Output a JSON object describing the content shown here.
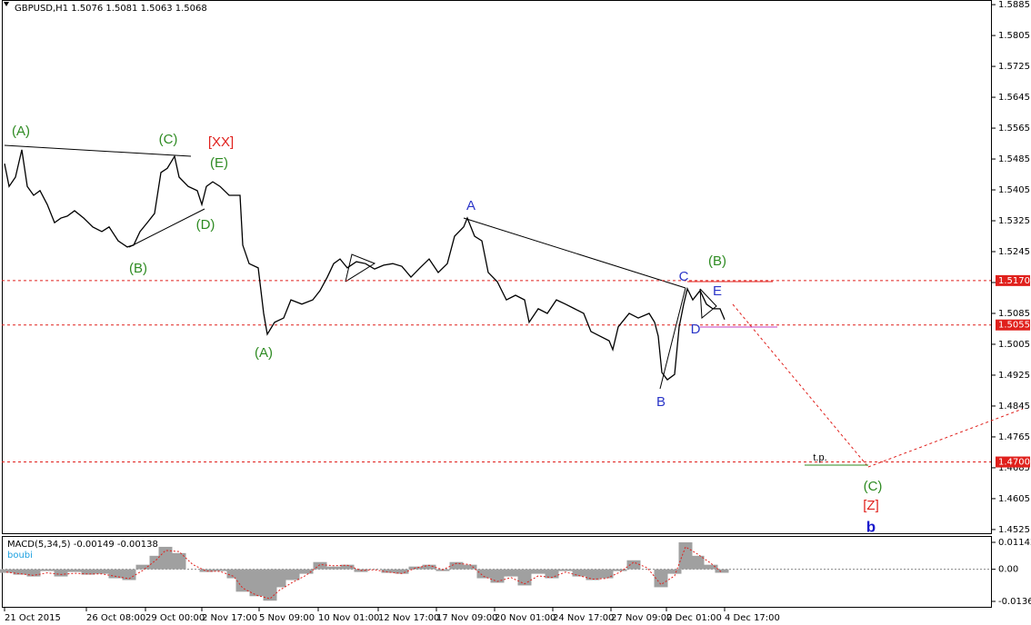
{
  "chart_data": [
    {
      "type": "line",
      "title": "GBPUSD,H1  1.5076 1.5081 1.5063 1.5068",
      "color": "#000000",
      "x": [
        1.5,
        4,
        7.5,
        11,
        14,
        17.5,
        21,
        25,
        29,
        32.5,
        36,
        40,
        45,
        50,
        55,
        59,
        64,
        69,
        72.5,
        76,
        80,
        84,
        87.5,
        91,
        95,
        97.5,
        102.5,
        107.5,
        110,
        112.5,
        116,
        120,
        125,
        131,
        132.5,
        136,
        141,
        144,
        146,
        150,
        155,
        159,
        165,
        171,
        175,
        179,
        182.5,
        186,
        190,
        195,
        200,
        205,
        210,
        215,
        220,
        225,
        230,
        235,
        240,
        245,
        249,
        254,
        256,
        260,
        264,
        267.5,
        272.5,
        277.5,
        282.5,
        287.5,
        290,
        295,
        300,
        305,
        310,
        315,
        320,
        324,
        329,
        334,
        336,
        339,
        345,
        350,
        356,
        359,
        361,
        363,
        366,
        370,
        372.5,
        375,
        377,
        380,
        384,
        387.5,
        391,
        395,
        397.5
      ],
      "values": [
        1.5473,
        1.5414,
        1.5438,
        1.5509,
        1.5414,
        1.5391,
        1.5403,
        1.5367,
        1.532,
        1.5332,
        1.5337,
        1.5351,
        1.5332,
        1.5309,
        1.5297,
        1.5309,
        1.5273,
        1.5257,
        1.5262,
        1.5297,
        1.532,
        1.5344,
        1.545,
        1.5461,
        1.5492,
        1.5438,
        1.5414,
        1.5403,
        1.5367,
        1.5414,
        1.5426,
        1.5414,
        1.5391,
        1.5391,
        1.5262,
        1.5214,
        1.5203,
        1.5085,
        1.5031,
        1.5062,
        1.5073,
        1.512,
        1.5109,
        1.512,
        1.5144,
        1.5179,
        1.5214,
        1.5226,
        1.5203,
        1.5219,
        1.5214,
        1.52,
        1.521,
        1.5214,
        1.5207,
        1.5179,
        1.5203,
        1.5226,
        1.5191,
        1.5214,
        1.5285,
        1.5309,
        1.5332,
        1.5285,
        1.5273,
        1.5191,
        1.5167,
        1.512,
        1.5132,
        1.512,
        1.5062,
        1.5097,
        1.5085,
        1.512,
        1.5109,
        1.5097,
        1.5085,
        1.5038,
        1.5026,
        1.5014,
        1.4991,
        1.505,
        1.5085,
        1.5073,
        1.5085,
        1.5062,
        1.5026,
        1.4932,
        1.4913,
        1.4927,
        1.505,
        1.5109,
        1.5149,
        1.512,
        1.5144,
        1.5109,
        1.5097,
        1.5097,
        1.5069
      ],
      "xlim": [
        0,
        545
      ],
      "ylim": [
        1.4513,
        1.5897
      ],
      "xticks": [
        {
          "value": 1.5,
          "label": "21 Oct 2015"
        },
        {
          "value": 46.5,
          "label": "26 Oct 08:00"
        },
        {
          "value": 79,
          "label": "29 Oct 00:00"
        },
        {
          "value": 110,
          "label": "2 Nov 17:00"
        },
        {
          "value": 141.5,
          "label": "5 Nov 09:00"
        },
        {
          "value": 174,
          "label": "10 Nov 01:00"
        },
        {
          "value": 207,
          "label": "12 Nov 17:00"
        },
        {
          "value": 239,
          "label": "17 Nov 09:00"
        },
        {
          "value": 271,
          "label": "20 Nov 01:00"
        },
        {
          "value": 303,
          "label": "24 Nov 17:00"
        },
        {
          "value": 335,
          "label": "27 Nov 09:00"
        },
        {
          "value": 365.5,
          "label": "2 Dec 01:00"
        },
        {
          "value": 397.5,
          "label": "4 Dec 17:00"
        }
      ],
      "yticks": [
        1.5885,
        1.5805,
        1.5725,
        1.5645,
        1.5565,
        1.5485,
        1.5405,
        1.5325,
        1.5245,
        1.5165,
        1.5085,
        1.5005,
        1.4925,
        1.4845,
        1.4765,
        1.4685,
        1.4605,
        1.4525
      ],
      "levels": [
        {
          "value": 1.517,
          "label": "1.5170"
        },
        1.5055,
        {
          "value": 1.47,
          "label": "1.4700"
        }
      ],
      "level_color": "#e0201c",
      "annotations": [
        {
          "text": "(A)",
          "color": "#2e8b22"
        },
        {
          "text": "(C)",
          "color": "#2e8b22"
        },
        {
          "text": "[XX]",
          "color": "#e0201c"
        },
        {
          "text": "(E)",
          "color": "#2e8b22"
        },
        {
          "text": "(D)",
          "color": "#2e8b22"
        },
        {
          "text": "(B)",
          "color": "#2e8b22"
        },
        {
          "text": "(A)",
          "color": "#2e8b22"
        },
        {
          "text": "A",
          "color": "#2a35c8"
        },
        {
          "text": "(B)",
          "color": "#2e8b22"
        },
        {
          "text": "C",
          "color": "#2a35c8"
        },
        {
          "text": "E",
          "color": "#2a35c8"
        },
        {
          "text": "D",
          "color": "#2a35c8"
        },
        {
          "text": "B",
          "color": "#2a35c8"
        },
        {
          "text": "t.p.",
          "color": "#000000"
        },
        {
          "text": "(C)",
          "color": "#2e8b22"
        },
        {
          "text": "[Z]",
          "color": "#e0201c"
        },
        {
          "text": "b",
          "color": "#1a1acc"
        }
      ]
    },
    {
      "type": "bar",
      "title": "MACD(5,34,5) -0.00149 -0.00138",
      "subtitle": "boubi",
      "x": [
        2.5,
        10,
        17.5,
        25,
        32.5,
        40,
        47.5,
        55,
        62.5,
        70,
        77.5,
        85,
        90,
        97.5,
        105,
        112.5,
        120,
        127.5,
        132.5,
        140,
        147.5,
        152.5,
        160,
        167.5,
        175,
        182.5,
        190,
        197.5,
        205,
        212.5,
        220,
        227.5,
        235,
        242.5,
        250,
        257.5,
        265,
        272.5,
        280,
        287.5,
        295,
        302.5,
        310,
        317.5,
        325,
        332.5,
        340,
        347.5,
        355,
        362.5,
        370,
        376,
        382.5,
        390,
        396
      ],
      "series": [
        {
          "color": "#a0a0a0",
          "values": [
            -0.00152,
            -0.00229,
            -0.00305,
            -0.00076,
            -0.00305,
            -0.00114,
            -0.00229,
            -0.00191,
            -0.00381,
            -0.00457,
            0.00191,
            0.00571,
            0.00952,
            0.00686,
            0,
            -0.00114,
            -0.00076,
            -0.00381,
            -0.00952,
            -0.01142,
            -0.01333,
            -0.00762,
            -0.00457,
            -0.00191,
            0.00305,
            0.00114,
            0.00191,
            -0.00114,
            0,
            -0.00152,
            -0.00191,
            0.00114,
            0.00191,
            -0.00076,
            0.00305,
            0.00191,
            -0.00381,
            -0.00571,
            -0.00305,
            -0.00686,
            -0.00191,
            -0.00381,
            -0.00076,
            -0.00305,
            -0.00457,
            -0.00381,
            -0.00076,
            0.00381,
            0,
            -0.00762,
            -0.00191,
            0.01142,
            0.00571,
            0.00191,
            -0.00149
          ]
        },
        {
          "color": "#e0201c",
          "values": [
            -0.0012,
            -0.0019,
            -0.0026,
            -0.0015,
            -0.0022,
            -0.0017,
            -0.002,
            -0.00195,
            -0.003,
            -0.004,
            -0.0005,
            0.004,
            0.008,
            0.0075,
            0.002,
            -0.0008,
            -0.0009,
            -0.003,
            -0.008,
            -0.011,
            -0.0125,
            -0.009,
            -0.0055,
            -0.0025,
            0.002,
            0.0015,
            0.0017,
            -0.0005,
            -0.0002,
            -0.0012,
            -0.0018,
            0.0005,
            0.0017,
            -0.0002,
            0.0025,
            0.002,
            -0.003,
            -0.0052,
            -0.0035,
            -0.0062,
            -0.0028,
            -0.0035,
            -0.0012,
            -0.0027,
            -0.0042,
            -0.0039,
            -0.0012,
            0.003,
            0.0006,
            -0.0065,
            -0.0028,
            0.0095,
            0.0065,
            0.0025,
            -0.00138
          ]
        }
      ],
      "xlim": [
        0,
        545
      ],
      "ylim": [
        -0.01594,
        0.01412
      ],
      "yticks": [
        0.01142,
        {
          "value": 0,
          "label": "0.00"
        },
        -0.01363
      ]
    }
  ]
}
